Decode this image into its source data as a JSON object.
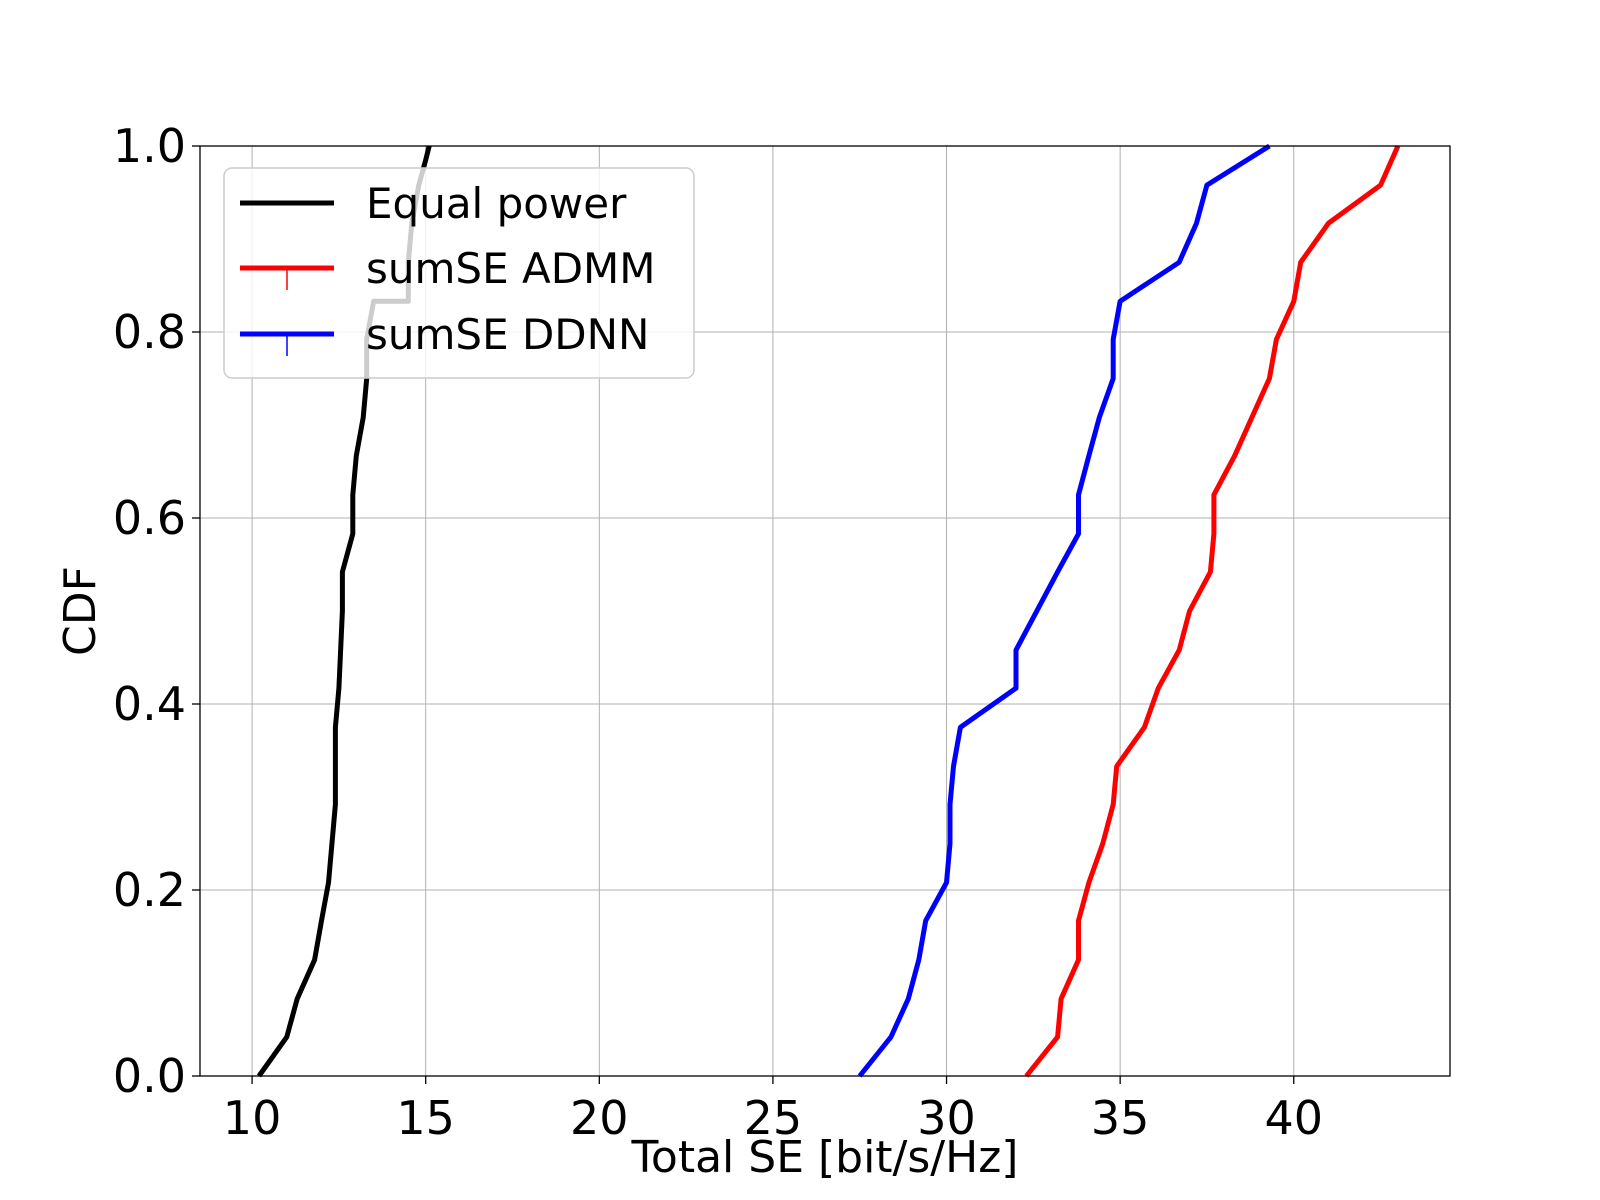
{
  "chart_data": {
    "type": "line",
    "title": "",
    "xlabel": "Total SE [bit/s/Hz]",
    "ylabel": "CDF",
    "xlim": [
      8.5,
      44.5
    ],
    "ylim": [
      0,
      1
    ],
    "xticks": [
      10,
      15,
      20,
      25,
      30,
      35,
      40
    ],
    "yticks": [
      0.0,
      0.2,
      0.4,
      0.6,
      0.8,
      1.0
    ],
    "xtick_labels": [
      "10",
      "15",
      "20",
      "25",
      "30",
      "35",
      "40"
    ],
    "ytick_labels": [
      "0.0",
      "0.2",
      "0.4",
      "0.6",
      "0.8",
      "1.0"
    ],
    "grid": true,
    "legend_position": "top-left",
    "series": [
      {
        "name": "Equal power",
        "color": "#000000",
        "x": [
          10.2,
          11.0,
          11.3,
          11.8,
          12.0,
          12.2,
          12.4,
          12.4,
          12.5,
          12.6,
          12.6,
          12.9,
          12.9,
          13.0,
          13.2,
          13.3,
          13.3,
          13.5,
          14.5,
          14.5,
          14.6,
          14.8,
          15.0,
          15.1
        ],
        "y": [
          0.0,
          0.042,
          0.083,
          0.125,
          0.167,
          0.208,
          0.292,
          0.375,
          0.417,
          0.5,
          0.542,
          0.583,
          0.625,
          0.667,
          0.708,
          0.75,
          0.792,
          0.833,
          0.833,
          0.875,
          0.917,
          0.958,
          0.985,
          1.0
        ]
      },
      {
        "name": "sumSE ADMM",
        "color": "#ff0000",
        "x": [
          32.3,
          33.2,
          33.3,
          33.8,
          33.8,
          34.1,
          34.5,
          34.8,
          34.9,
          34.9,
          35.7,
          36.1,
          36.7,
          37.0,
          37.6,
          37.7,
          37.7,
          38.3,
          39.3,
          39.5,
          40.0,
          40.2,
          41.0,
          42.5,
          43.0
        ],
        "y": [
          0.0,
          0.042,
          0.083,
          0.125,
          0.167,
          0.208,
          0.25,
          0.292,
          0.333,
          0.333,
          0.375,
          0.417,
          0.458,
          0.5,
          0.542,
          0.583,
          0.625,
          0.667,
          0.75,
          0.792,
          0.833,
          0.875,
          0.917,
          0.958,
          1.0
        ]
      },
      {
        "name": "sumSE DDNN",
        "color": "#0000ff",
        "x": [
          27.5,
          28.4,
          28.9,
          29.2,
          29.4,
          30.0,
          30.1,
          30.1,
          30.2,
          30.4,
          32.0,
          32.0,
          33.2,
          33.8,
          33.8,
          34.1,
          34.4,
          34.8,
          34.8,
          35.0,
          36.7,
          37.2,
          37.5,
          39.3
        ],
        "y": [
          0.0,
          0.042,
          0.083,
          0.125,
          0.167,
          0.208,
          0.25,
          0.292,
          0.333,
          0.375,
          0.417,
          0.458,
          0.542,
          0.583,
          0.625,
          0.667,
          0.708,
          0.75,
          0.792,
          0.833,
          0.875,
          0.917,
          0.958,
          1.0
        ]
      }
    ]
  }
}
